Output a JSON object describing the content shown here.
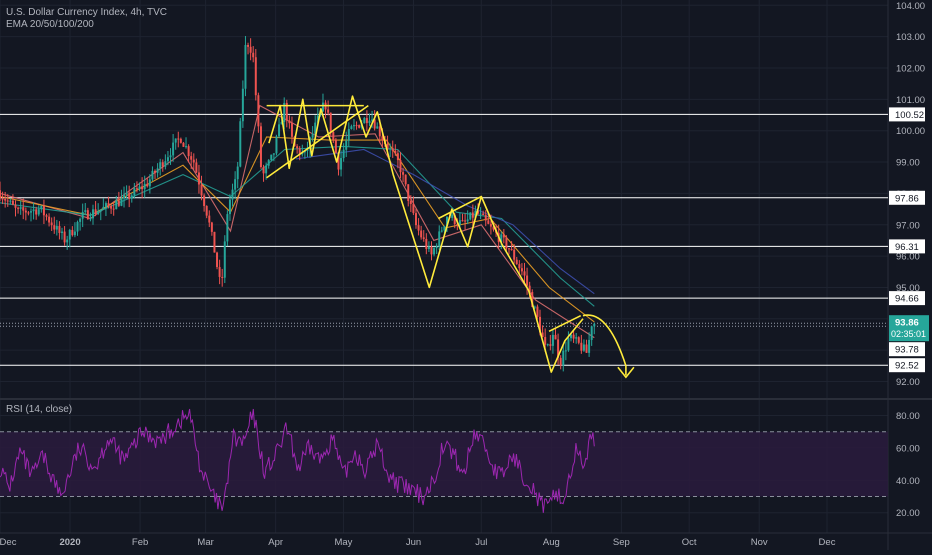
{
  "header": {
    "title": "U.S. Dollar Currency Index, 4h, TVC",
    "indicator": "EMA 20/50/100/200"
  },
  "rsi_pane": {
    "label": "RSI (14, close)"
  },
  "price_badges": {
    "current": "93.86",
    "countdown": "02:35:01",
    "secondary": "93.78"
  },
  "colors": {
    "background": "#131722",
    "grid": "#1e2330",
    "axis_text": "#b2b5be",
    "horizontal_level": "#ffffff",
    "drawing": "#ffeb3b",
    "candle_up": "#26a69a",
    "candle_down": "#ef5350",
    "ema20": "#e57373",
    "ema50": "#f9a825",
    "ema100": "#26a69a",
    "ema200": "#3f51b5",
    "rsi_line": "#9c27b0",
    "rsi_band": "#2a1b3d",
    "current_badge": "#26a69a"
  },
  "chart_data": [
    {
      "type": "candlestick",
      "title": "U.S. Dollar Currency Index, 4h, TVC",
      "x_tick_labels": [
        "Dec",
        "2020",
        "Feb",
        "Mar",
        "Apr",
        "May",
        "Jun",
        "Jul",
        "Aug",
        "Sep",
        "Oct",
        "Nov",
        "Dec"
      ],
      "y_tick_labels": [
        "104.00",
        "103.00",
        "102.00",
        "101.00",
        "100.00",
        "99.00",
        "98.00",
        "97.00",
        "96.00",
        "95.00",
        "94.00",
        "93.00",
        "92.00"
      ],
      "ylim": [
        91.6,
        104.3
      ],
      "grid": true,
      "horizontal_levels": [
        100.52,
        97.86,
        96.31,
        94.66,
        92.52
      ],
      "level_labels": [
        "100.52",
        "97.86",
        "96.31",
        "94.66",
        "92.52"
      ],
      "price_path": [
        [
          "2019-12-01",
          98.1
        ],
        [
          "2019-12-10",
          97.4
        ],
        [
          "2019-12-20",
          97.5
        ],
        [
          "2019-12-31",
          96.5
        ],
        [
          "2020-01-08",
          97.3
        ],
        [
          "2020-01-20",
          97.6
        ],
        [
          "2020-01-28",
          97.9
        ],
        [
          "2020-02-05",
          98.3
        ],
        [
          "2020-02-12",
          99.0
        ],
        [
          "2020-02-20",
          99.8
        ],
        [
          "2020-02-26",
          99.0
        ],
        [
          "2020-03-03",
          97.3
        ],
        [
          "2020-03-06",
          96.2
        ],
        [
          "2020-03-09",
          94.9
        ],
        [
          "2020-03-12",
          97.6
        ],
        [
          "2020-03-16",
          98.5
        ],
        [
          "2020-03-20",
          102.9
        ],
        [
          "2020-03-23",
          102.5
        ],
        [
          "2020-03-27",
          98.5
        ],
        [
          "2020-04-01",
          99.2
        ],
        [
          "2020-04-06",
          100.8
        ],
        [
          "2020-04-10",
          99.5
        ],
        [
          "2020-04-15",
          99.2
        ],
        [
          "2020-04-20",
          100.2
        ],
        [
          "2020-04-24",
          100.9
        ],
        [
          "2020-04-30",
          98.9
        ],
        [
          "2020-05-05",
          100.0
        ],
        [
          "2020-05-14",
          100.5
        ],
        [
          "2020-05-20",
          99.7
        ],
        [
          "2020-05-27",
          98.9
        ],
        [
          "2020-06-03",
          97.0
        ],
        [
          "2020-06-10",
          96.0
        ],
        [
          "2020-06-17",
          97.3
        ],
        [
          "2020-06-24",
          97.0
        ],
        [
          "2020-06-30",
          97.4
        ],
        [
          "2020-07-06",
          96.9
        ],
        [
          "2020-07-14",
          96.3
        ],
        [
          "2020-07-21",
          95.4
        ],
        [
          "2020-07-27",
          94.0
        ],
        [
          "2020-07-31",
          92.9
        ],
        [
          "2020-08-03",
          93.6
        ],
        [
          "2020-08-06",
          92.6
        ],
        [
          "2020-08-10",
          93.4
        ],
        [
          "2020-08-14",
          93.2
        ],
        [
          "2020-08-18",
          92.9
        ],
        [
          "2020-08-20",
          93.86
        ]
      ],
      "ema_series": [
        {
          "name": "EMA 20",
          "values": [
            [
              "2019-12-01",
              98.0
            ],
            [
              "2020-01-10",
              97.2
            ],
            [
              "2020-02-20",
              99.3
            ],
            [
              "2020-03-12",
              96.8
            ],
            [
              "2020-03-25",
              100.8
            ],
            [
              "2020-04-20",
              99.8
            ],
            [
              "2020-05-15",
              99.9
            ],
            [
              "2020-06-10",
              96.5
            ],
            [
              "2020-07-01",
              97.0
            ],
            [
              "2020-07-25",
              94.6
            ],
            [
              "2020-08-20",
              93.4
            ]
          ]
        },
        {
          "name": "EMA 50",
          "values": [
            [
              "2019-12-01",
              97.9
            ],
            [
              "2020-01-10",
              97.3
            ],
            [
              "2020-02-20",
              98.9
            ],
            [
              "2020-03-12",
              97.4
            ],
            [
              "2020-03-28",
              99.8
            ],
            [
              "2020-04-25",
              99.7
            ],
            [
              "2020-05-20",
              99.7
            ],
            [
              "2020-06-15",
              96.9
            ],
            [
              "2020-07-05",
              97.2
            ],
            [
              "2020-07-31",
              95.0
            ],
            [
              "2020-08-20",
              93.9
            ]
          ]
        },
        {
          "name": "EMA 100",
          "values": [
            [
              "2019-12-01",
              97.7
            ],
            [
              "2020-01-10",
              97.3
            ],
            [
              "2020-02-20",
              98.6
            ],
            [
              "2020-03-12",
              97.9
            ],
            [
              "2020-04-05",
              99.4
            ],
            [
              "2020-05-01",
              99.5
            ],
            [
              "2020-05-25",
              99.4
            ],
            [
              "2020-06-20",
              97.4
            ],
            [
              "2020-07-10",
              97.2
            ],
            [
              "2020-08-05",
              95.3
            ],
            [
              "2020-08-20",
              94.4
            ]
          ]
        },
        {
          "name": "EMA 200",
          "values": [
            [
              "2020-04-10",
              99.1
            ],
            [
              "2020-05-10",
              99.4
            ],
            [
              "2020-06-01",
              98.6
            ],
            [
              "2020-06-25",
              97.6
            ],
            [
              "2020-07-15",
              97.0
            ],
            [
              "2020-08-05",
              95.6
            ],
            [
              "2020-08-20",
              94.8
            ]
          ]
        }
      ],
      "drawing_path": [
        [
          "2020-03-29",
          99.6
        ],
        [
          "2020-04-03",
          100.8
        ],
        [
          "2020-04-07",
          98.8
        ],
        [
          "2020-04-13",
          101.0
        ],
        [
          "2020-04-17",
          99.2
        ],
        [
          "2020-04-21",
          100.7
        ],
        [
          "2020-04-28",
          99.0
        ],
        [
          "2020-05-05",
          101.1
        ],
        [
          "2020-05-11",
          99.8
        ],
        [
          "2020-05-16",
          100.6
        ],
        [
          "2020-05-23",
          98.6
        ],
        [
          "2020-06-08",
          95.0
        ],
        [
          "2020-06-18",
          97.5
        ],
        [
          "2020-06-25",
          96.3
        ],
        [
          "2020-07-01",
          97.9
        ],
        [
          "2020-07-10",
          96.4
        ],
        [
          "2020-07-22",
          94.9
        ],
        [
          "2020-08-01",
          92.3
        ],
        [
          "2020-08-07",
          93.3
        ],
        [
          "2020-08-15",
          94.0
        ]
      ],
      "drawing_lines": [
        [
          [
            "2020-03-28",
            98.5
          ],
          [
            "2020-05-12",
            100.8
          ]
        ],
        [
          [
            "2020-03-28",
            100.8
          ],
          [
            "2020-05-10",
            100.8
          ]
        ],
        [
          [
            "2020-06-12",
            97.2
          ],
          [
            "2020-07-01",
            97.9
          ]
        ],
        [
          [
            "2020-07-31",
            93.6
          ],
          [
            "2020-08-14",
            94.1
          ]
        ]
      ],
      "projection_arrow": [
        [
          "2020-08-15",
          94.1
        ],
        [
          "2020-08-26",
          94.3
        ],
        [
          "2020-09-05",
          93.0
        ],
        [
          "2020-09-03",
          92.2
        ]
      ]
    },
    {
      "type": "line",
      "title": "RSI (14, close)",
      "y_tick_labels": [
        "80.00",
        "60.00",
        "40.00",
        "20.00"
      ],
      "ylim": [
        12,
        87
      ],
      "bands": [
        30,
        70
      ],
      "series": [
        {
          "name": "RSI",
          "values": [
            [
              "2019-12-01",
              48
            ],
            [
              "2019-12-05",
              35
            ],
            [
              "2019-12-10",
              58
            ],
            [
              "2019-12-15",
              42
            ],
            [
              "2019-12-20",
              55
            ],
            [
              "2019-12-28",
              30
            ],
            [
              "2020-01-05",
              60
            ],
            [
              "2020-01-12",
              48
            ],
            [
              "2020-01-18",
              66
            ],
            [
              "2020-01-25",
              52
            ],
            [
              "2020-02-02",
              70
            ],
            [
              "2020-02-10",
              64
            ],
            [
              "2020-02-18",
              76
            ],
            [
              "2020-02-23",
              81
            ],
            [
              "2020-02-28",
              46
            ],
            [
              "2020-03-05",
              28
            ],
            [
              "2020-03-09",
              22
            ],
            [
              "2020-03-13",
              66
            ],
            [
              "2020-03-18",
              63
            ],
            [
              "2020-03-22",
              82
            ],
            [
              "2020-03-27",
              45
            ],
            [
              "2020-04-01",
              55
            ],
            [
              "2020-04-06",
              72
            ],
            [
              "2020-04-11",
              47
            ],
            [
              "2020-04-16",
              60
            ],
            [
              "2020-04-21",
              52
            ],
            [
              "2020-04-26",
              67
            ],
            [
              "2020-05-01",
              42
            ],
            [
              "2020-05-06",
              58
            ],
            [
              "2020-05-11",
              46
            ],
            [
              "2020-05-16",
              63
            ],
            [
              "2020-05-21",
              43
            ],
            [
              "2020-05-26",
              37
            ],
            [
              "2020-06-01",
              33
            ],
            [
              "2020-06-05",
              30
            ],
            [
              "2020-06-10",
              40
            ],
            [
              "2020-06-14",
              62
            ],
            [
              "2020-06-19",
              56
            ],
            [
              "2020-06-23",
              42
            ],
            [
              "2020-06-28",
              70
            ],
            [
              "2020-07-02",
              64
            ],
            [
              "2020-07-06",
              48
            ],
            [
              "2020-07-10",
              42
            ],
            [
              "2020-07-15",
              56
            ],
            [
              "2020-07-19",
              44
            ],
            [
              "2020-07-23",
              38
            ],
            [
              "2020-07-27",
              26
            ],
            [
              "2020-07-31",
              22
            ],
            [
              "2020-08-03",
              35
            ],
            [
              "2020-08-06",
              25
            ],
            [
              "2020-08-09",
              42
            ],
            [
              "2020-08-12",
              58
            ],
            [
              "2020-08-15",
              50
            ],
            [
              "2020-08-18",
              63
            ],
            [
              "2020-08-20",
              66
            ]
          ]
        }
      ]
    }
  ]
}
